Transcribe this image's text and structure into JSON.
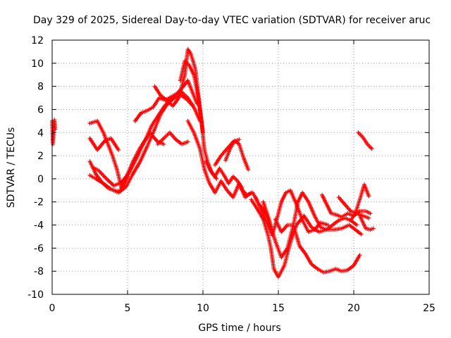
{
  "chart_data": {
    "type": "scatter",
    "title": "Day 329 of 2025, Sidereal Day-to-day VTEC variation (SDTVAR) for receiver aruc",
    "xlabel": "GPS time / hours",
    "ylabel": "SDTVAR / TECUs",
    "xlim": [
      0,
      25
    ],
    "ylim": [
      -10,
      12
    ],
    "xticks": [
      0,
      5,
      10,
      15,
      20,
      25
    ],
    "yticks": [
      -10,
      -8,
      -6,
      -4,
      -2,
      0,
      2,
      4,
      6,
      8,
      10,
      12
    ],
    "grid": true,
    "marker": "plus",
    "color": "#ff0000",
    "series": [
      {
        "x": [
          0.0,
          0.05,
          0.1,
          0.15,
          0.2
        ],
        "y": [
          5.0,
          3.0,
          4.0,
          5.1,
          4.3
        ]
      },
      {
        "x": [
          2.5,
          3.0,
          3.4,
          3.7,
          4.0,
          4.3,
          4.6
        ],
        "y": [
          4.8,
          5.0,
          4.0,
          3.0,
          2.0,
          0.8,
          -0.8
        ]
      },
      {
        "x": [
          2.5,
          3.0,
          3.5,
          3.9,
          4.4
        ],
        "y": [
          3.5,
          2.5,
          3.3,
          3.5,
          2.5
        ]
      },
      {
        "x": [
          2.5,
          2.9,
          3.3,
          3.7,
          4.1,
          4.5,
          5.0
        ],
        "y": [
          1.5,
          0.4,
          -0.3,
          -0.8,
          -1.0,
          -1.1,
          0.2
        ]
      },
      {
        "x": [
          2.5,
          2.9,
          3.4,
          3.9,
          4.4,
          4.9,
          5.3,
          5.8,
          6.3,
          6.8,
          7.2,
          7.6,
          8.1,
          8.6,
          9.0,
          9.4,
          9.8
        ],
        "y": [
          0.3,
          0.0,
          -0.4,
          -0.9,
          -1.2,
          -0.7,
          0.3,
          1.4,
          2.8,
          4.3,
          5.6,
          6.4,
          7.0,
          7.2,
          6.8,
          6.2,
          5.0
        ]
      },
      {
        "x": [
          2.7,
          3.1,
          3.6,
          4.1,
          4.6,
          5.1,
          5.6,
          6.1,
          6.5
        ],
        "y": [
          1.0,
          0.7,
          0.0,
          -0.6,
          -0.3,
          0.5,
          1.8,
          3.2,
          4.0
        ]
      },
      {
        "x": [
          4.6,
          5.0,
          5.4,
          5.8,
          6.2,
          6.6,
          7.0,
          7.4,
          7.8,
          8.2,
          8.6,
          9.0,
          9.3
        ],
        "y": [
          -0.8,
          0.4,
          1.6,
          2.6,
          3.4,
          4.6,
          5.4,
          6.2,
          6.8,
          7.2,
          7.5,
          7.0,
          6.4
        ]
      },
      {
        "x": [
          5.5,
          5.9,
          6.3,
          6.7,
          7.1,
          7.5,
          7.9,
          8.3,
          8.7,
          9.0,
          9.3,
          9.6
        ],
        "y": [
          5.0,
          5.7,
          5.9,
          6.2,
          7.0,
          6.8,
          7.1,
          7.4,
          8.0,
          8.5,
          7.5,
          6.5
        ]
      },
      {
        "x": [
          6.8,
          7.2,
          7.6,
          8.0,
          8.4,
          8.8,
          9.0,
          9.2,
          9.5,
          9.8,
          10.0
        ],
        "y": [
          8.0,
          7.2,
          6.8,
          6.3,
          7.0,
          9.0,
          11.2,
          10.8,
          9.5,
          6.0,
          4.0
        ]
      },
      {
        "x": [
          8.5,
          8.8,
          9.1,
          9.4,
          9.7,
          9.9,
          10.1,
          10.3,
          10.6,
          10.9
        ],
        "y": [
          8.5,
          10.2,
          9.8,
          9.0,
          7.0,
          5.0,
          2.5,
          1.5,
          0.5,
          0.0
        ]
      },
      {
        "x": [
          7.0,
          7.4,
          7.8,
          8.2,
          8.6,
          9.0
        ],
        "y": [
          3.0,
          3.5,
          4.0,
          3.4,
          3.0,
          3.2
        ]
      },
      {
        "x": [
          6.6,
          7.0,
          7.4
        ],
        "y": [
          3.8,
          3.2,
          3.0
        ]
      },
      {
        "x": [
          9.0,
          9.4,
          9.8,
          10.1,
          10.4,
          10.8,
          11.2,
          11.6,
          12.0,
          12.4,
          12.8,
          13.2
        ],
        "y": [
          5.0,
          4.0,
          2.6,
          0.8,
          -0.3,
          -1.2,
          -0.2,
          -1.0,
          -1.6,
          -0.4,
          -1.6,
          -1.2
        ]
      },
      {
        "x": [
          10.2,
          10.5,
          10.8,
          11.1,
          11.4,
          11.7,
          12.0,
          12.3,
          12.6
        ],
        "y": [
          1.5,
          0.7,
          0.2,
          0.9,
          0.3,
          -0.4,
          0.2,
          -0.2,
          -0.8
        ]
      },
      {
        "x": [
          10.8,
          11.2,
          11.6,
          12.0,
          12.4
        ],
        "y": [
          1.2,
          2.0,
          2.6,
          3.2,
          3.4
        ]
      },
      {
        "x": [
          11.5,
          11.8,
          12.1,
          12.4,
          12.7,
          13.0
        ],
        "y": [
          1.6,
          2.6,
          3.3,
          3.0,
          1.8,
          0.8
        ]
      },
      {
        "x": [
          12.5,
          12.9,
          13.3,
          13.7,
          14.0,
          14.3,
          14.5
        ],
        "y": [
          -0.8,
          -1.4,
          -1.2,
          -2.2,
          -2.6,
          -3.4,
          -4.4
        ]
      },
      {
        "x": [
          13.2,
          13.6,
          14.0,
          14.3,
          14.5,
          14.7,
          15.0,
          15.4,
          15.8,
          16.2,
          16.7,
          17.2,
          17.7,
          18.2,
          18.7,
          19.2,
          19.7,
          20.2,
          20.5
        ],
        "y": [
          -1.8,
          -2.6,
          -3.5,
          -4.8,
          -6.0,
          -7.8,
          -8.5,
          -7.5,
          -5.5,
          -4.0,
          -3.2,
          -4.2,
          -4.6,
          -4.4,
          -4.4,
          -4.3,
          -4.0,
          -4.5,
          -4.8
        ]
      },
      {
        "x": [
          13.5,
          13.9,
          14.3,
          14.6,
          14.9,
          15.2,
          15.5,
          15.8,
          16.2,
          16.6,
          17.0,
          17.4,
          17.8,
          18.3
        ],
        "y": [
          -1.6,
          -2.8,
          -4.0,
          -4.9,
          -3.5,
          -2.0,
          -1.2,
          -1.0,
          -2.2,
          -3.6,
          -4.6,
          -4.4,
          -3.8,
          -4.0
        ]
      },
      {
        "x": [
          14.0,
          14.4,
          14.8,
          15.2,
          15.6,
          16.0,
          16.3,
          16.6,
          17.0,
          17.4,
          17.8,
          18.2,
          18.6,
          19.0,
          19.4,
          19.8,
          20.2
        ],
        "y": [
          -2.0,
          -3.6,
          -5.4,
          -6.8,
          -6.0,
          -4.0,
          -2.0,
          -1.2,
          -2.0,
          -3.2,
          -4.2,
          -4.4,
          -4.0,
          -3.6,
          -3.4,
          -3.6,
          -4.0
        ]
      },
      {
        "x": [
          14.8,
          15.2,
          15.6,
          16.0,
          16.4,
          16.8,
          17.2,
          17.6,
          18.0,
          18.4,
          18.8,
          19.2,
          19.6,
          20.0,
          20.4
        ],
        "y": [
          -3.5,
          -4.6,
          -4.0,
          -4.0,
          -5.8,
          -6.5,
          -7.4,
          -7.8,
          -8.1,
          -8.0,
          -7.8,
          -8.0,
          -7.9,
          -7.5,
          -6.6
        ]
      },
      {
        "x": [
          17.9,
          18.2,
          18.5,
          18.8,
          19.2,
          19.6,
          20.0,
          20.4,
          20.8,
          21.1
        ],
        "y": [
          -1.4,
          -2.2,
          -3.0,
          -3.1,
          -3.3,
          -3.0,
          -3.2,
          -2.8,
          -2.8,
          -3.0
        ]
      },
      {
        "x": [
          19.0,
          19.4,
          19.8,
          20.2,
          20.6,
          21.0
        ],
        "y": [
          -1.6,
          -2.2,
          -2.8,
          -3.0,
          -3.2,
          -3.4
        ]
      },
      {
        "x": [
          19.8,
          20.1,
          20.4,
          20.7,
          21.0
        ],
        "y": [
          -3.6,
          -3.0,
          -1.8,
          -0.5,
          -1.5
        ]
      },
      {
        "x": [
          20.4,
          20.8,
          21.1,
          21.3
        ],
        "y": [
          -3.2,
          -4.3,
          -4.4,
          -4.3
        ]
      },
      {
        "x": [
          20.3,
          20.6,
          20.9,
          21.2
        ],
        "y": [
          4.0,
          3.6,
          3.0,
          2.6
        ]
      }
    ]
  }
}
